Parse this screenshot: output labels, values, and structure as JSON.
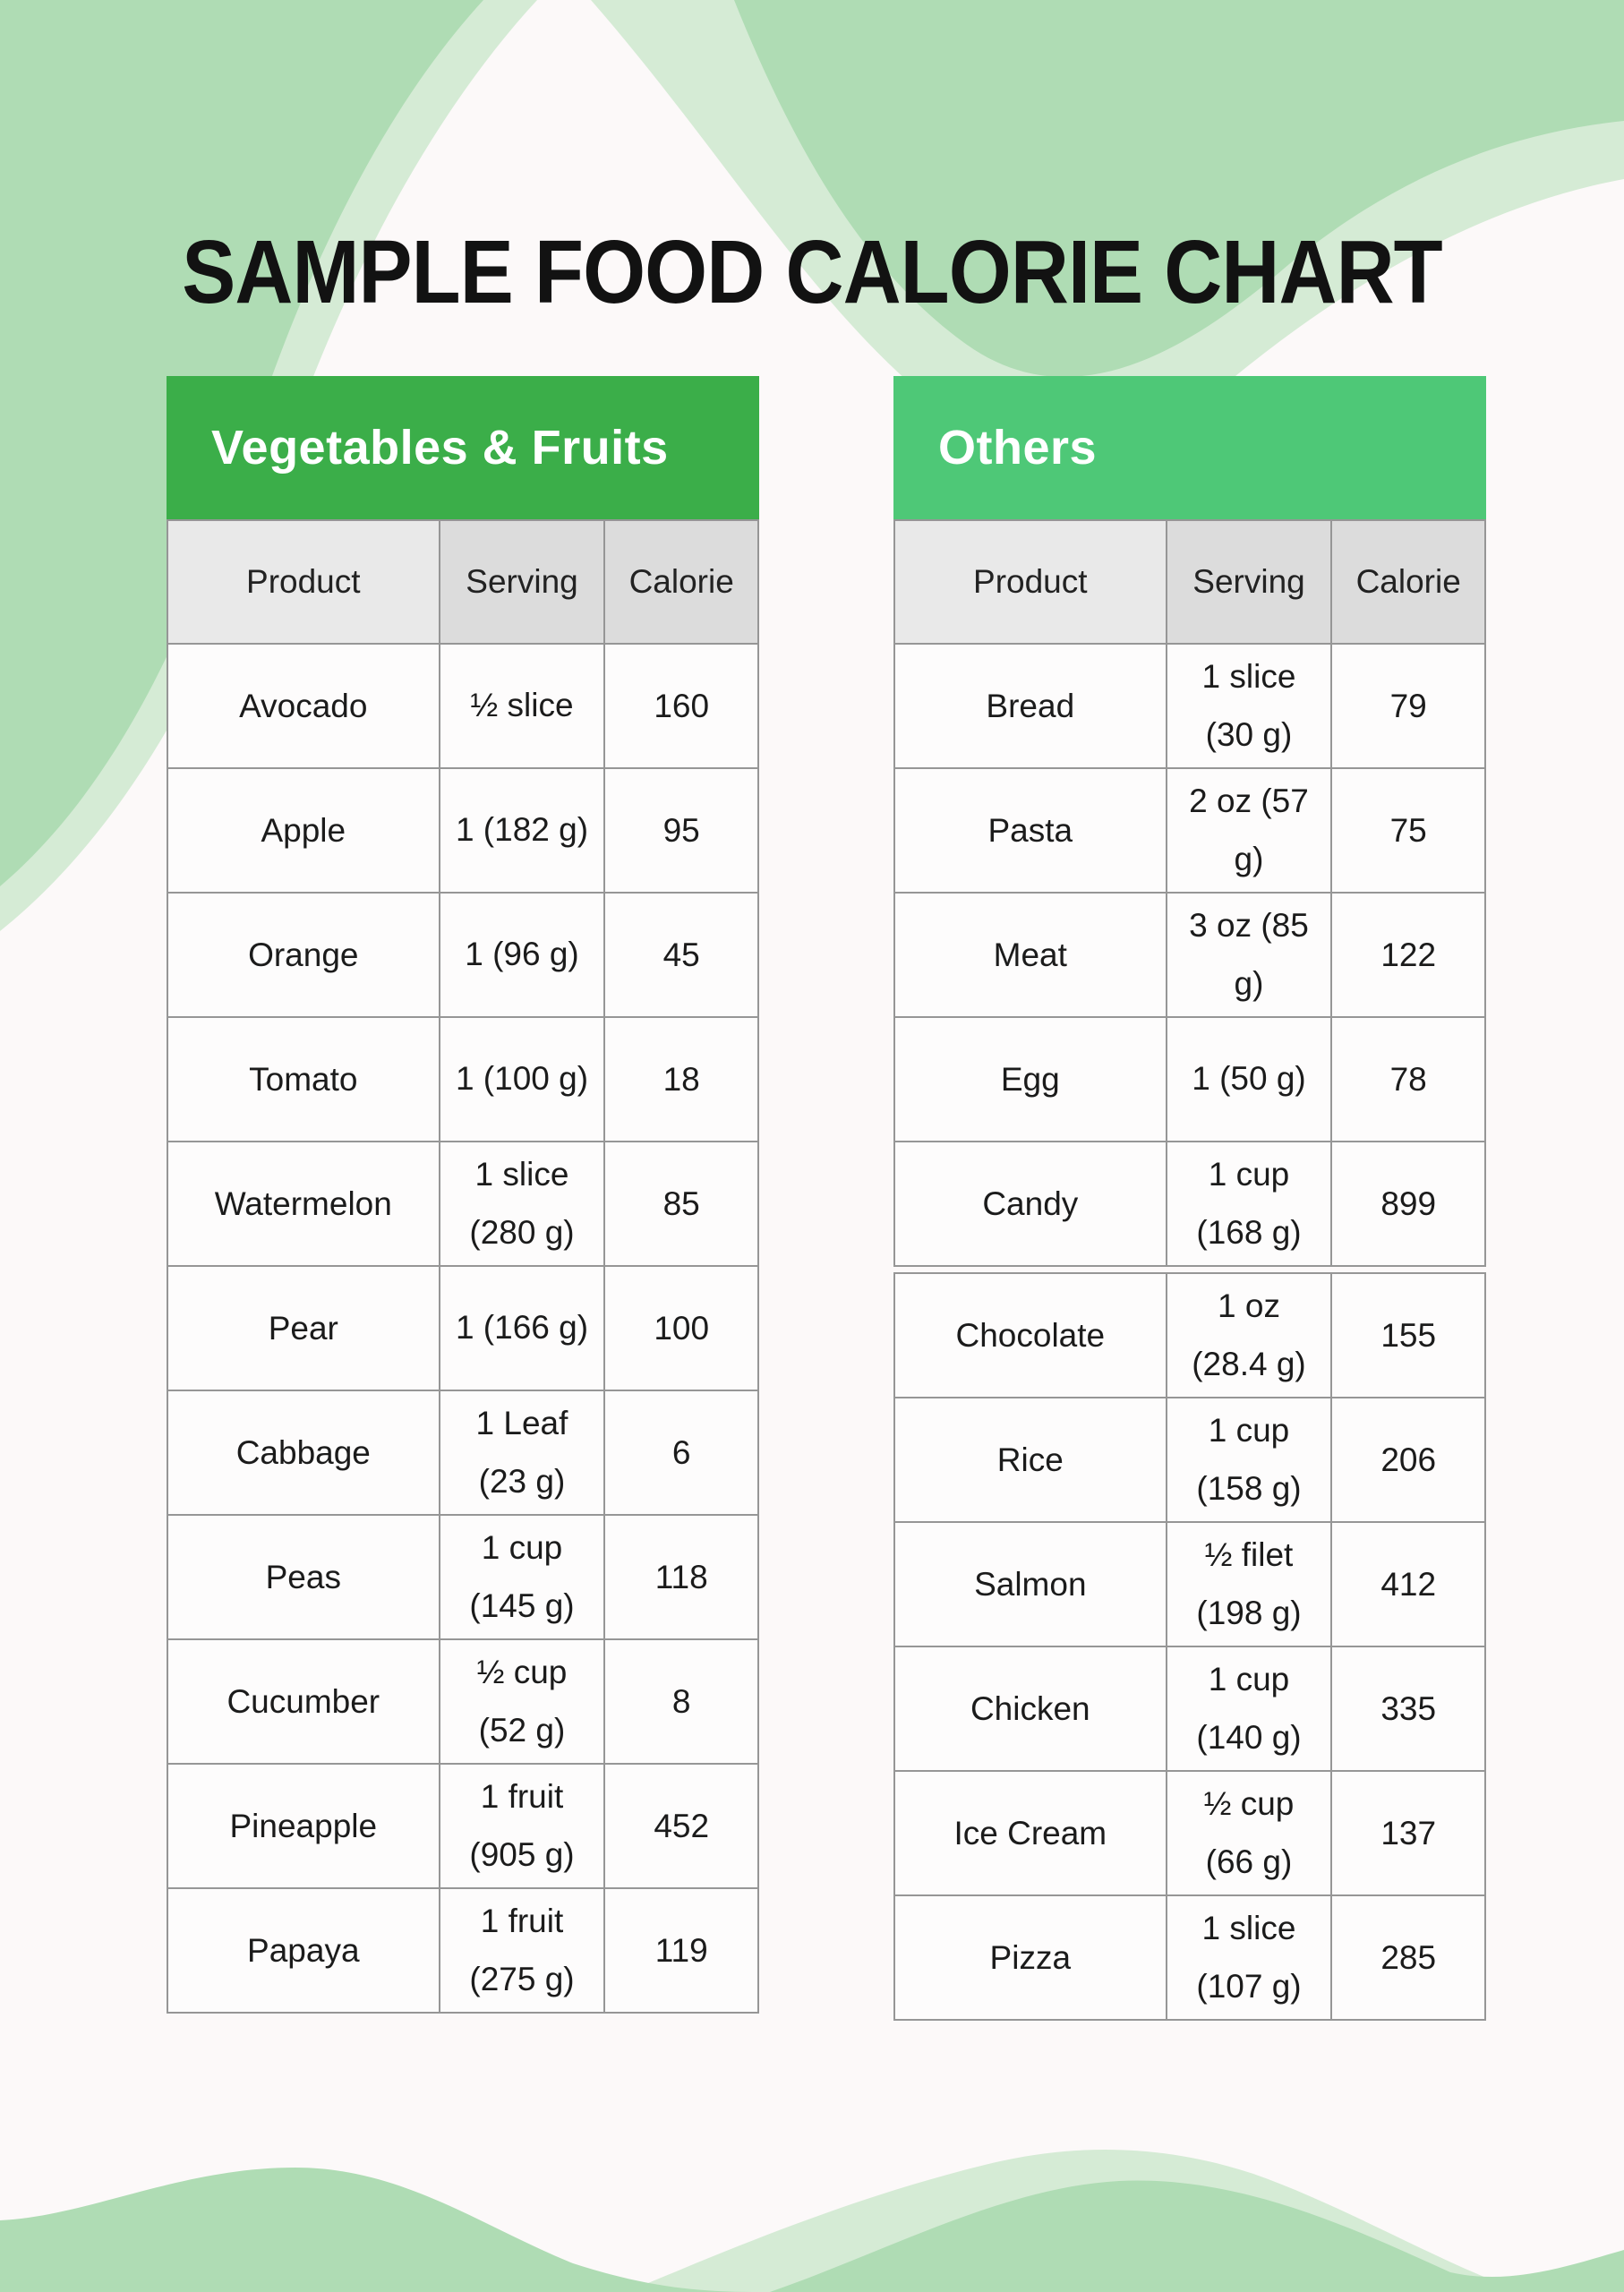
{
  "page_title": "SAMPLE FOOD CALORIE CHART",
  "columns": [
    "Product",
    "Serving",
    "Calorie"
  ],
  "colors": {
    "left_header_green": "#3bae49",
    "right_header_green": "#4ec877",
    "wave_green_dark": "#afdcb4",
    "wave_green_light": "#d5ebd5",
    "page_background": "#fcf9f9",
    "table_border": "#969696",
    "header_cell_product_bg": "#e9e9e9",
    "header_cell_other_bg": "#dcdcdc"
  },
  "left_table": {
    "title": "Vegetables & Fruits",
    "rows": [
      {
        "product": "Avocado",
        "serving": "½ slice",
        "calorie": "160"
      },
      {
        "product": "Apple",
        "serving": "1 (182 g)",
        "calorie": "95"
      },
      {
        "product": "Orange",
        "serving": "1 (96 g)",
        "calorie": "45"
      },
      {
        "product": "Tomato",
        "serving": "1 (100 g)",
        "calorie": "18"
      },
      {
        "product": "Watermelon",
        "serving": "1 slice\n(280 g)",
        "calorie": "85"
      },
      {
        "product": "Pear",
        "serving": "1 (166 g)",
        "calorie": "100"
      },
      {
        "product": "Cabbage",
        "serving": "1 Leaf\n(23 g)",
        "calorie": "6"
      },
      {
        "product": "Peas",
        "serving": "1 cup\n(145 g)",
        "calorie": "118"
      },
      {
        "product": "Cucumber",
        "serving": "½ cup\n(52 g)",
        "calorie": "8"
      },
      {
        "product": "Pineapple",
        "serving": "1 fruit\n(905 g)",
        "calorie": "452"
      },
      {
        "product": "Papaya",
        "serving": "1 fruit\n(275 g)",
        "calorie": "119"
      }
    ]
  },
  "right_table": {
    "title": "Others",
    "rows_upper": [
      {
        "product": "Bread",
        "serving": "1 slice\n(30 g)",
        "calorie": "79"
      },
      {
        "product": "Pasta",
        "serving": "2 oz (57 g)",
        "calorie": "75"
      },
      {
        "product": "Meat",
        "serving": "3 oz (85 g)",
        "calorie": "122"
      },
      {
        "product": "Egg",
        "serving": "1 (50 g)",
        "calorie": "78"
      },
      {
        "product": "Candy",
        "serving": "1 cup\n(168 g)",
        "calorie": "899"
      }
    ],
    "rows_lower": [
      {
        "product": "Chocolate",
        "serving": "1 oz\n(28.4 g)",
        "calorie": "155"
      },
      {
        "product": "Rice",
        "serving": "1 cup\n(158 g)",
        "calorie": "206"
      },
      {
        "product": "Salmon",
        "serving": "½ filet\n(198 g)",
        "calorie": "412"
      },
      {
        "product": "Chicken",
        "serving": "1 cup\n(140 g)",
        "calorie": "335"
      },
      {
        "product": "Ice Cream",
        "serving": "½ cup\n(66 g)",
        "calorie": "137"
      },
      {
        "product": "Pizza",
        "serving": "1 slice\n(107 g)",
        "calorie": "285"
      }
    ]
  }
}
